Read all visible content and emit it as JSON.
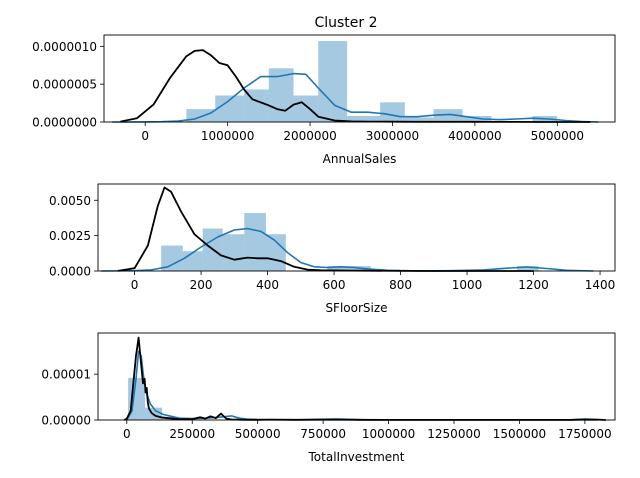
{
  "figure": {
    "title": "Cluster 2"
  },
  "colors": {
    "hist": "#1f77b4",
    "hist_opacity": 0.4,
    "kde_main": "#1f77b4",
    "kde_other": "#000000"
  },
  "chart_data": [
    {
      "type": "histogram",
      "title": "Cluster 2",
      "xlabel": "AnnualSales",
      "ylabel": "",
      "xlim": [
        -500000,
        5700000
      ],
      "ylim": [
        0,
        1.15e-06
      ],
      "xticks": [
        0,
        1000000,
        2000000,
        3000000,
        4000000,
        5000000
      ],
      "xtick_labels": [
        "0",
        "1000000",
        "2000000",
        "3000000",
        "4000000",
        "5000000"
      ],
      "yticks": [
        0,
        5e-07,
        1e-06
      ],
      "ytick_labels": [
        "0.0000000",
        "0.0000005",
        "0.0000010"
      ],
      "bins": [
        {
          "x0": 500000,
          "x1": 850000,
          "density": 1.7e-07
        },
        {
          "x0": 850000,
          "x1": 1200000,
          "density": 3.5e-07
        },
        {
          "x0": 1200000,
          "x1": 1500000,
          "density": 4.3e-07
        },
        {
          "x0": 1500000,
          "x1": 1800000,
          "density": 7.1e-07
        },
        {
          "x0": 1800000,
          "x1": 2100000,
          "density": 3.5e-07
        },
        {
          "x0": 2100000,
          "x1": 2450000,
          "density": 1.07e-06
        },
        {
          "x0": 2450000,
          "x1": 2850000,
          "density": 8e-08
        },
        {
          "x0": 2850000,
          "x1": 3150000,
          "density": 2.6e-07
        },
        {
          "x0": 3150000,
          "x1": 3500000,
          "density": 6e-08
        },
        {
          "x0": 3500000,
          "x1": 3850000,
          "density": 1.7e-07
        },
        {
          "x0": 3850000,
          "x1": 4200000,
          "density": 8e-08
        },
        {
          "x0": 4700000,
          "x1": 5000000,
          "density": 8e-08
        }
      ],
      "series": [
        {
          "color": "#1f77b4",
          "x": [
            -400000,
            -200000,
            0,
            200000,
            400000,
            600000,
            800000,
            1000000,
            1200000,
            1400000,
            1600000,
            1800000,
            1950000,
            2100000,
            2300000,
            2500000,
            2700000,
            2900000,
            3100000,
            3300000,
            3500000,
            3700000,
            3900000,
            4100000,
            4300000,
            4500000,
            4700000,
            4900000,
            5100000,
            5300000,
            5500000
          ],
          "y": [
            0,
            0,
            1e-09,
            4e-09,
            1.2e-08,
            4e-08,
            1.2e-07,
            2.7e-07,
            4.5e-07,
            6e-07,
            6e-07,
            6.4e-07,
            6.3e-07,
            4.5e-07,
            2.2e-07,
            1.3e-07,
            1.3e-07,
            1.1e-07,
            7e-08,
            7e-08,
            9e-08,
            1e-07,
            7e-08,
            4e-08,
            3e-08,
            4e-08,
            5e-08,
            4e-08,
            2e-08,
            5e-09,
            0
          ]
        },
        {
          "color": "#000000",
          "x": [
            -300000,
            -100000,
            100000,
            300000,
            500000,
            600000,
            700000,
            800000,
            900000,
            1000000,
            1100000,
            1200000,
            1300000,
            1400000,
            1500000,
            1600000,
            1700000,
            1800000,
            1900000,
            2000000,
            2100000,
            2300000,
            2500000,
            2700000,
            3000000,
            3300000,
            3600000,
            3900000,
            4200000,
            4500000,
            4800000,
            5100000,
            5400000
          ],
          "y": [
            5e-09,
            5e-08,
            2.3e-07,
            5.8e-07,
            8.7e-07,
            9.4e-07,
            9.5e-07,
            8.8e-07,
            7.8e-07,
            7.5e-07,
            6e-07,
            4.3e-07,
            3e-07,
            2.6e-07,
            2.2e-07,
            1.7e-07,
            1.5e-07,
            2.3e-07,
            2.6e-07,
            1.7e-07,
            7e-08,
            2e-08,
            8e-09,
            5e-09,
            4e-09,
            3e-09,
            2e-09,
            2e-09,
            1e-09,
            1e-09,
            0,
            0,
            0
          ]
        }
      ]
    },
    {
      "type": "histogram",
      "xlabel": "SFloorSize",
      "ylabel": "",
      "xlim": [
        -110,
        1445
      ],
      "ylim": [
        0,
        0.00615
      ],
      "xticks": [
        0,
        200,
        400,
        600,
        800,
        1000,
        1200,
        1400
      ],
      "xtick_labels": [
        "0",
        "200",
        "400",
        "600",
        "800",
        "1000",
        "1200",
        "1400"
      ],
      "yticks": [
        0,
        0.0025,
        0.005
      ],
      "ytick_labels": [
        "0.0000",
        "0.0025",
        "0.0050"
      ],
      "bins": [
        {
          "x0": 80,
          "x1": 145,
          "density": 0.0018
        },
        {
          "x0": 145,
          "x1": 205,
          "density": 0.0014
        },
        {
          "x0": 205,
          "x1": 265,
          "density": 0.003
        },
        {
          "x0": 265,
          "x1": 330,
          "density": 0.0026
        },
        {
          "x0": 330,
          "x1": 395,
          "density": 0.0041
        },
        {
          "x0": 395,
          "x1": 455,
          "density": 0.0026
        },
        {
          "x0": 580,
          "x1": 710,
          "density": 0.00035
        },
        {
          "x0": 1150,
          "x1": 1215,
          "density": 0.00035
        }
      ],
      "series": [
        {
          "color": "#1f77b4",
          "x": [
            -100,
            0,
            50,
            100,
            150,
            200,
            250,
            300,
            340,
            380,
            420,
            460,
            500,
            540,
            580,
            620,
            660,
            700,
            760,
            850,
            950,
            1050,
            1120,
            1180,
            1240,
            1300,
            1380
          ],
          "y": [
            0,
            2e-05,
            8e-05,
            0.0003,
            0.0009,
            0.0017,
            0.0024,
            0.0029,
            0.003,
            0.0028,
            0.0022,
            0.0013,
            0.0006,
            0.0003,
            0.00025,
            0.0003,
            0.00025,
            0.00015,
            5e-05,
            1e-05,
            2e-05,
            8e-05,
            0.0002,
            0.00028,
            0.00018,
            5e-05,
            0
          ]
        },
        {
          "color": "#000000",
          "x": [
            -50,
            0,
            40,
            70,
            90,
            110,
            140,
            180,
            220,
            260,
            300,
            340,
            370,
            400,
            440,
            480,
            520,
            560,
            600,
            650,
            700,
            800,
            900,
            1000,
            1100,
            1200
          ],
          "y": [
            1e-05,
            0.0002,
            0.0018,
            0.0046,
            0.0059,
            0.0056,
            0.0042,
            0.0026,
            0.0018,
            0.0011,
            0.0008,
            0.00095,
            0.0009,
            0.0009,
            0.0007,
            0.0003,
            0.0001,
            5e-05,
            4e-05,
            3e-05,
            2e-05,
            1e-05,
            0,
            0,
            0,
            0
          ]
        }
      ]
    },
    {
      "type": "histogram",
      "xlabel": "TotalInvestment",
      "ylabel": "",
      "xlim": [
        -110000,
        1865000
      ],
      "ylim": [
        0,
        1.9e-05
      ],
      "xticks": [
        0,
        250000,
        500000,
        750000,
        1000000,
        1250000,
        1500000,
        1750000
      ],
      "xtick_labels": [
        "0",
        "250000",
        "500000",
        "750000",
        "1000000",
        "1250000",
        "1500000",
        "1750000"
      ],
      "yticks": [
        0,
        1e-05
      ],
      "ytick_labels": [
        "0.00000",
        "0.00001"
      ],
      "bins": [
        {
          "x0": 5000,
          "x1": 70000,
          "density": 9.2e-06
        },
        {
          "x0": 70000,
          "x1": 135000,
          "density": 2.7e-06
        },
        {
          "x0": 135000,
          "x1": 200000,
          "density": 7e-07
        },
        {
          "x0": 390000,
          "x1": 455000,
          "density": 3e-07
        }
      ],
      "series": [
        {
          "color": "#1f77b4",
          "x": [
            0,
            20000,
            35000,
            45000,
            55000,
            65000,
            75000,
            90000,
            110000,
            140000,
            170000,
            200000,
            250000,
            300000,
            350000,
            400000,
            430000,
            460000,
            500000,
            600000,
            800000,
            1000000,
            1400000,
            1800000
          ],
          "y": [
            0,
            2e-06,
            9e-06,
            1.5e-05,
            1.4e-05,
            9e-06,
            6e-06,
            3.5e-06,
            2e-06,
            1.2e-06,
            8e-07,
            4e-07,
            3e-07,
            4e-07,
            6e-07,
            9e-07,
            4e-07,
            2e-07,
            1e-07,
            5e-08,
            3e-08,
            2e-08,
            1e-08,
            0
          ]
        },
        {
          "color": "#000000",
          "x": [
            -10000,
            0,
            15000,
            25000,
            35000,
            45000,
            55000,
            62000,
            68000,
            72000,
            76000,
            80000,
            85000,
            95000,
            110000,
            130000,
            160000,
            200000,
            250000,
            280000,
            300000,
            320000,
            340000,
            360000,
            370000,
            380000,
            400000,
            450000,
            500000,
            550000,
            650000,
            800000,
            900000,
            1000000,
            1200000,
            1400000,
            1600000,
            1700000,
            1750000,
            1800000,
            1830000
          ],
          "y": [
            0,
            3e-07,
            2e-06,
            8e-06,
            1.4e-05,
            1.8e-05,
            1.2e-05,
            8e-06,
            9e-06,
            6e-06,
            7e-06,
            4e-06,
            2.5e-06,
            1.5e-06,
            9e-07,
            6e-07,
            4e-07,
            2e-07,
            2e-07,
            6e-07,
            3e-07,
            8e-07,
            4e-07,
            1.4e-06,
            8e-07,
            3e-07,
            1e-07,
            5e-08,
            5e-08,
            8e-08,
            5e-08,
            1.5e-07,
            5e-08,
            3e-08,
            2e-08,
            2e-08,
            3e-08,
            5e-08,
            1.5e-07,
            8e-08,
            0
          ]
        }
      ]
    }
  ]
}
